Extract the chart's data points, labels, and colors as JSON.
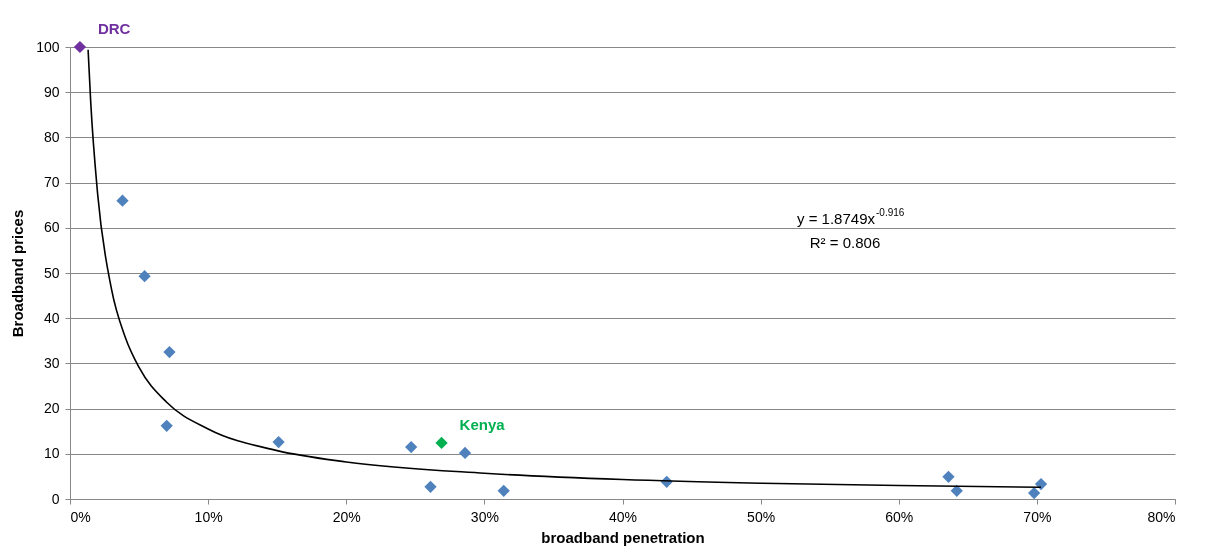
{
  "chart_data": {
    "type": "scatter",
    "xlabel": "broadband penetration",
    "ylabel": "Broadband  prices",
    "xlim": [
      0,
      80
    ],
    "ylim": [
      0,
      100
    ],
    "xticks": [
      {
        "value": 0,
        "label": "0%"
      },
      {
        "value": 10,
        "label": "10%"
      },
      {
        "value": 20,
        "label": "20%"
      },
      {
        "value": 30,
        "label": "30%"
      },
      {
        "value": 40,
        "label": "40%"
      },
      {
        "value": 50,
        "label": "50%"
      },
      {
        "value": 60,
        "label": "60%"
      },
      {
        "value": 70,
        "label": "70%"
      },
      {
        "value": 80,
        "label": "80%"
      }
    ],
    "yticks": [
      0,
      10,
      20,
      30,
      40,
      50,
      60,
      70,
      80,
      90,
      100
    ],
    "grid": "y",
    "marker": "diamond",
    "series": [
      {
        "x": [
          0.72,
          3.8,
          5.4,
          7.2,
          7.0,
          15.1,
          24.7,
          26.1,
          26.9,
          28.6,
          31.4,
          43.2,
          63.6,
          64.2,
          69.8,
          70.3
        ],
        "values": [
          100,
          66,
          49.3,
          32.5,
          16.2,
          12.6,
          11.5,
          2.7,
          12.4,
          10.2,
          1.8,
          3.8,
          4.9,
          1.8,
          1.3,
          3.3
        ],
        "colors": [
          "#7030a0",
          "#4f81bd",
          "#4f81bd",
          "#4f81bd",
          "#4f81bd",
          "#4f81bd",
          "#4f81bd",
          "#4f81bd",
          "#00b050",
          "#4f81bd",
          "#4f81bd",
          "#4f81bd",
          "#4f81bd",
          "#4f81bd",
          "#4f81bd",
          "#4f81bd"
        ]
      },
      {
        "type": "line",
        "color": "#000000",
        "marker": "none",
        "line_style": "solid",
        "x": [
          1.31,
          1.5,
          2,
          3,
          4,
          5,
          7,
          10,
          15,
          20,
          30,
          40,
          50,
          60,
          70.3
        ],
        "values": [
          99.4,
          87.8,
          67.5,
          46.5,
          35.8,
          29.1,
          21.4,
          15.5,
          10.7,
          8.2,
          5.7,
          4.3,
          3.5,
          3,
          2.6
        ]
      }
    ],
    "annotations": [
      {
        "text": "DRC",
        "x": 0.72,
        "y": 100
      },
      {
        "text": "Kenya",
        "x": 26.9,
        "y": 12.4
      },
      "y = 1.8749x$^{-0.916}$",
      "R² = 0.806"
    ]
  }
}
